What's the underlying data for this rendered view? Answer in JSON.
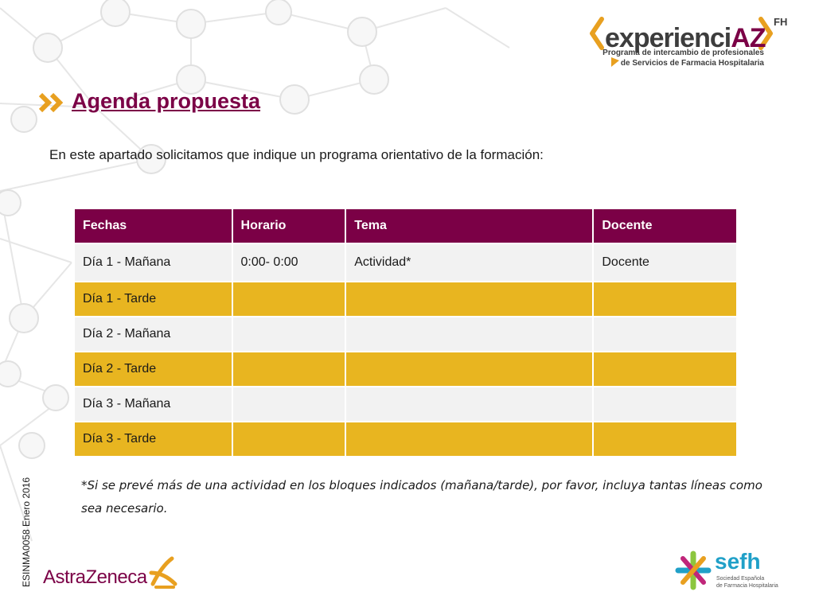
{
  "brand": {
    "experienciaz": {
      "word_plain": "experienci",
      "word_az": "AZ",
      "superscript": "FH",
      "tagline_line1": "Programa de intercambio de profesionales",
      "tagline_line2": "de Servicios de Farmacia Hospitalaria"
    },
    "astrazeneca": {
      "name": "AstraZeneca"
    },
    "sefh": {
      "name": "sefh",
      "tagline_line1": "Sociedad Española",
      "tagline_line2": "de Farmacia Hospitalaria"
    }
  },
  "page": {
    "title": "Agenda propuesta",
    "intro": "En este apartado solicitamos que indique un programa orientativo de la formación:",
    "footnote": "*Si se prevé más de una actividad en los bloques indicados (mañana/tarde), por favor, incluya tantas líneas como sea necesario.",
    "side_code": "ESINMA0058 Enero 2016"
  },
  "table": {
    "headers": [
      "Fechas",
      "Horario",
      "Tema",
      "Docente"
    ],
    "rows": [
      [
        "Día 1 - Mañana",
        "0:00- 0:00",
        "Actividad*",
        "Docente"
      ],
      [
        "Día 1 - Tarde",
        "",
        "",
        ""
      ],
      [
        "Día 2 - Mañana",
        "",
        "",
        ""
      ],
      [
        "Día 2 - Tarde",
        "",
        "",
        ""
      ],
      [
        "Día 3 - Mañana",
        "",
        "",
        ""
      ],
      [
        "Día 3 - Tarde",
        "",
        "",
        ""
      ]
    ]
  },
  "colors": {
    "primary": "#7b0046",
    "accent_orange": "#e8b520",
    "row_light": "#f2f2f2",
    "chevron": "#e8a020"
  }
}
